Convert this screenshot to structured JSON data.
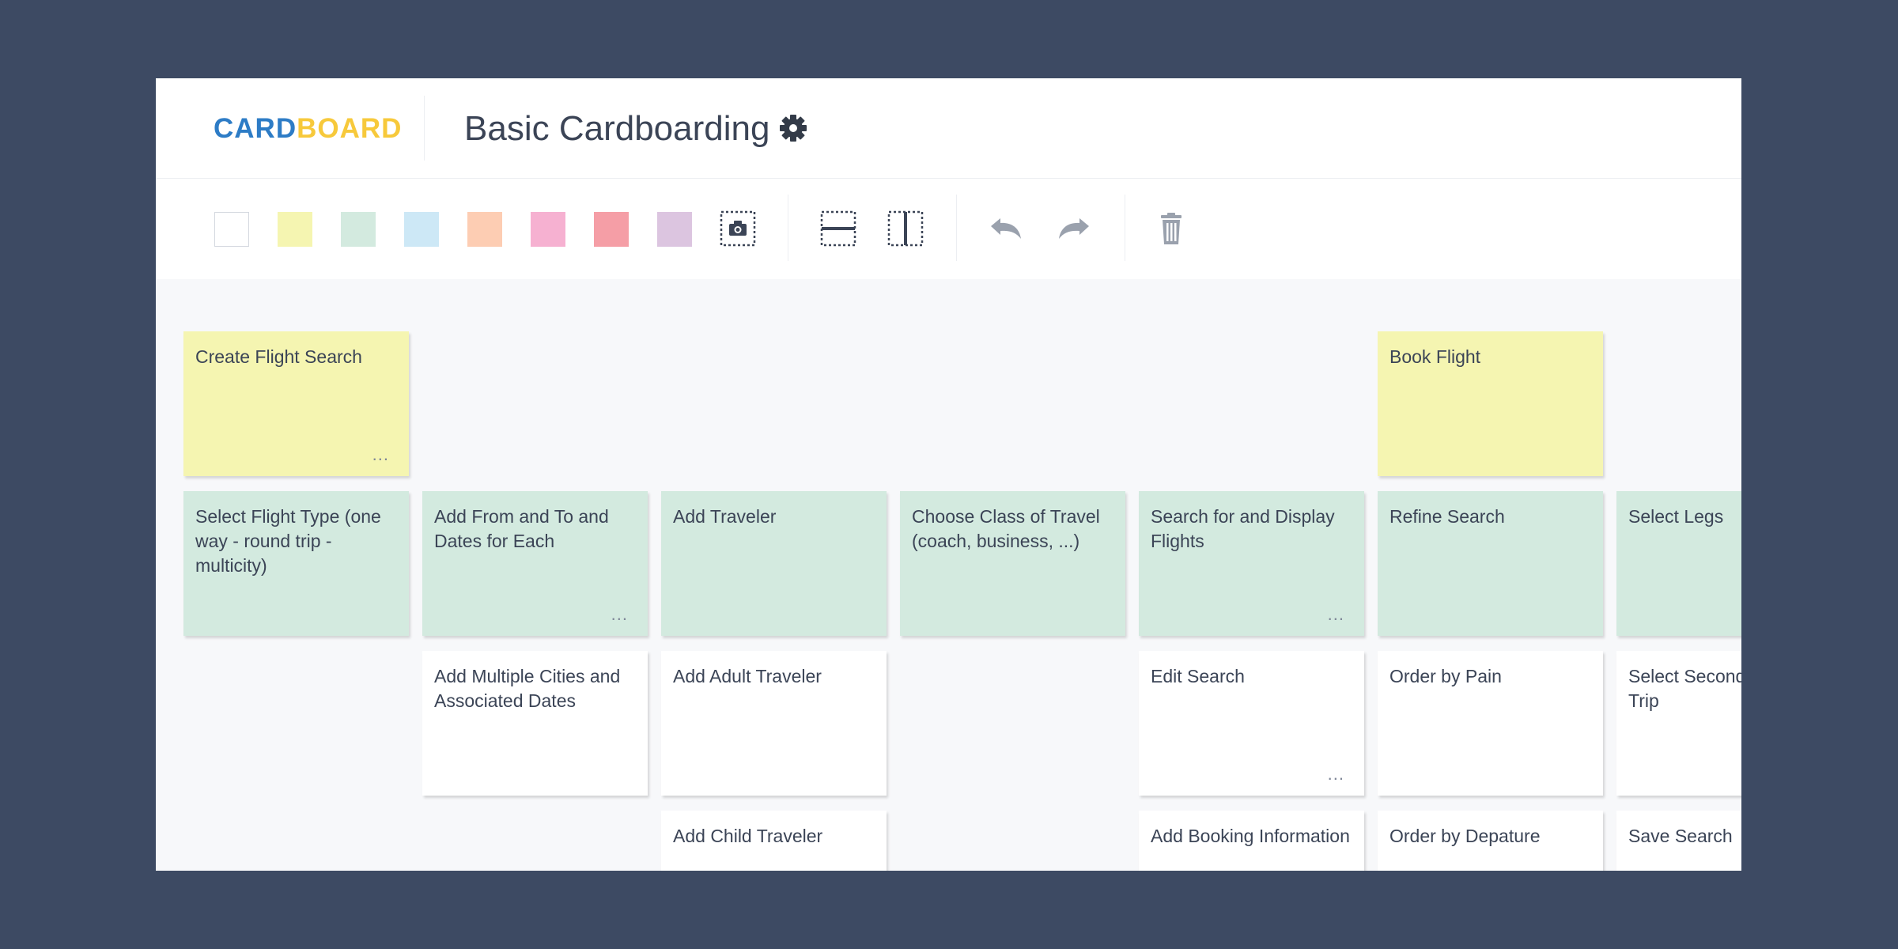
{
  "header": {
    "logo": {
      "part1": "CARD",
      "part2": "BOARD"
    },
    "board_title": "Basic Cardboarding",
    "settings_icon": "gear-icon"
  },
  "toolbar": {
    "swatches": [
      {
        "name": "white",
        "color": "#ffffff"
      },
      {
        "name": "yellow",
        "color": "#f5f5b1"
      },
      {
        "name": "green",
        "color": "#d3eadf"
      },
      {
        "name": "blue",
        "color": "#cde8f6"
      },
      {
        "name": "orange",
        "color": "#fdcdb3"
      },
      {
        "name": "pink",
        "color": "#f6b1d1"
      },
      {
        "name": "red",
        "color": "#f59ea6"
      },
      {
        "name": "purple",
        "color": "#dcc5e0"
      }
    ],
    "tools": [
      "camera-icon",
      "insert-row-icon",
      "insert-column-icon",
      "undo-icon",
      "redo-icon",
      "trash-icon"
    ]
  },
  "colors": {
    "background": "#3d4a63",
    "canvas": "#f7f8fa",
    "text": "#3b4456",
    "logo_blue": "#2d7cc6",
    "logo_yellow": "#f7c93b"
  },
  "cards": [
    {
      "text": "Create Flight Search",
      "color": "yellow",
      "has_more": true
    },
    {
      "text": "Book Flight",
      "color": "yellow",
      "has_more": false
    },
    {
      "text": "Select Flight Type (one way - round trip - multicity)",
      "color": "green",
      "has_more": false
    },
    {
      "text": "Add From and To and Dates for Each",
      "color": "green",
      "has_more": true
    },
    {
      "text": "Add Traveler",
      "color": "green",
      "has_more": false
    },
    {
      "text": "Choose Class of Travel (coach, business, ...)",
      "color": "green",
      "has_more": false
    },
    {
      "text": "Search for and Display Flights",
      "color": "green",
      "has_more": true
    },
    {
      "text": "Refine Search",
      "color": "green",
      "has_more": false
    },
    {
      "text": "Select Legs",
      "color": "green",
      "has_more": false
    },
    {
      "text": "Add Multiple Cities and Associated Dates",
      "color": "white",
      "has_more": false
    },
    {
      "text": "Add Adult Traveler",
      "color": "white",
      "has_more": false
    },
    {
      "text": "Edit Search",
      "color": "white",
      "has_more": true
    },
    {
      "text": "Order by Pain",
      "color": "white",
      "has_more": false
    },
    {
      "text": "Select Second Multileg Trip",
      "color": "white",
      "has_more": false
    },
    {
      "text": "Add Child Traveler",
      "color": "white",
      "has_more": false
    },
    {
      "text": "Add Booking Information",
      "color": "white",
      "has_more": false
    },
    {
      "text": "Order by Depature",
      "color": "white",
      "has_more": false
    },
    {
      "text": "Save Search",
      "color": "white",
      "has_more": false
    }
  ],
  "more_label": "..."
}
